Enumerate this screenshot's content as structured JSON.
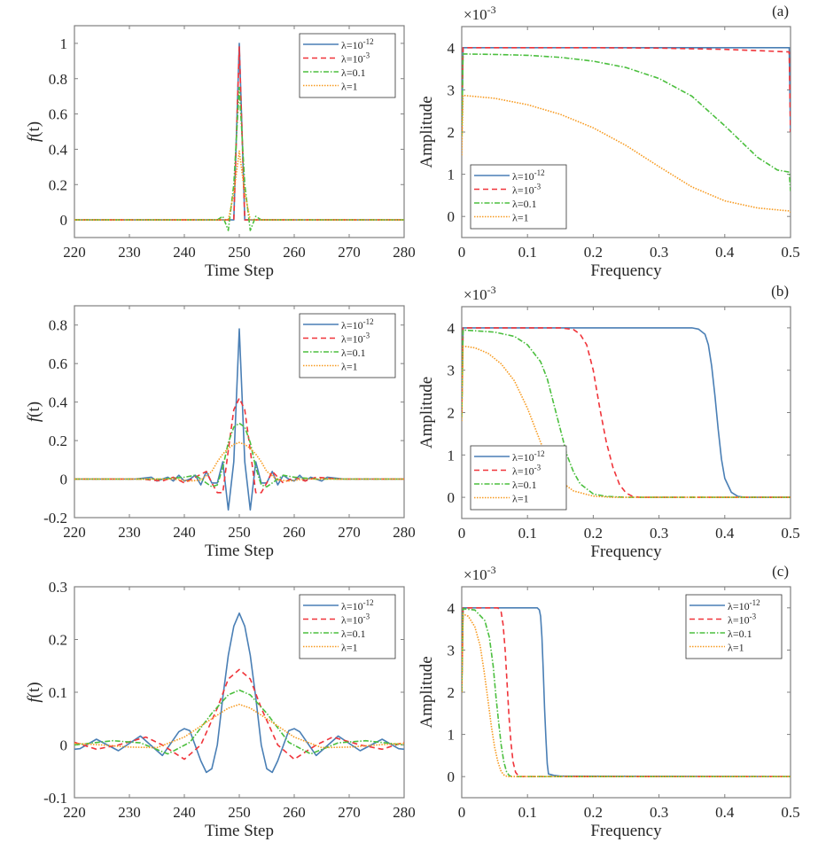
{
  "series_styles": [
    {
      "name": "λ=10^-12",
      "color": "#4a7fb5",
      "dash": ""
    },
    {
      "name": "λ=10^-3",
      "color": "#f0343a",
      "dash": "6,4"
    },
    {
      "name": "λ=0.1",
      "color": "#4bbf3e",
      "dash": "6,2,1.5,2"
    },
    {
      "name": "λ=1",
      "color": "#f79a1f",
      "dash": "1.5,1.5"
    }
  ],
  "legend_labels": [
    {
      "base": "λ=10",
      "sup": "-12"
    },
    {
      "base": "λ=10",
      "sup": "-3"
    },
    {
      "base": "λ=0.1",
      "sup": ""
    },
    {
      "base": "λ=1",
      "sup": ""
    }
  ],
  "chart_data": [
    {
      "id": "time-a",
      "type": "line",
      "xlabel": "Time Step",
      "ylabel": "f(t)",
      "xlim": [
        220,
        280
      ],
      "ylim": [
        -0.1,
        1.1
      ],
      "xticks": [
        "220",
        "230",
        "240",
        "250",
        "260",
        "270",
        "280"
      ],
      "yticks": [
        "0",
        "0.2",
        "0.4",
        "0.6",
        "0.8",
        "1"
      ],
      "legend": "top-right",
      "series": [
        {
          "name": "λ=10^-12",
          "x": [
            220,
            249,
            250,
            251,
            280
          ],
          "y": [
            0,
            0,
            1.0,
            0,
            0
          ]
        },
        {
          "name": "λ=10^-3",
          "x": [
            220,
            249,
            250,
            251,
            280
          ],
          "y": [
            0,
            0,
            0.98,
            0,
            0
          ]
        },
        {
          "name": "λ=0.1",
          "x": [
            220,
            246,
            247,
            248,
            249,
            250,
            251,
            252,
            253,
            254,
            280
          ],
          "y": [
            0,
            0,
            0.02,
            -0.06,
            0.2,
            0.75,
            0.2,
            -0.06,
            0.02,
            0,
            0
          ]
        },
        {
          "name": "λ=1",
          "x": [
            220,
            248,
            249,
            250,
            251,
            252,
            280
          ],
          "y": [
            0,
            0,
            0.15,
            0.39,
            0.15,
            0,
            0
          ]
        }
      ]
    },
    {
      "id": "freq-a",
      "type": "line",
      "panel_label": "(a)",
      "xlabel": "Frequency",
      "ylabel": "Amplitude",
      "y_exponent": "×10^-3",
      "xlim": [
        0,
        0.5
      ],
      "ylim": [
        -0.5,
        4.5
      ],
      "xticks": [
        "0",
        "0.1",
        "0.2",
        "0.3",
        "0.4",
        "0.5"
      ],
      "yticks": [
        "0",
        "1",
        "2",
        "3",
        "4"
      ],
      "legend": "bottom-left",
      "series": [
        {
          "name": "λ=10^-12",
          "x": [
            0,
            0.002,
            0.498,
            0.5
          ],
          "y": [
            2.0,
            4.0,
            4.0,
            2.0
          ]
        },
        {
          "name": "λ=10^-3",
          "x": [
            0,
            0.002,
            0.1,
            0.2,
            0.3,
            0.4,
            0.45,
            0.498,
            0.5
          ],
          "y": [
            2.0,
            4.0,
            4.0,
            4.0,
            3.99,
            3.96,
            3.93,
            3.9,
            2.0
          ]
        },
        {
          "name": "λ=0.1",
          "x": [
            0,
            0.002,
            0.05,
            0.1,
            0.15,
            0.2,
            0.25,
            0.3,
            0.35,
            0.4,
            0.45,
            0.48,
            0.498,
            0.5
          ],
          "y": [
            1.9,
            3.85,
            3.84,
            3.82,
            3.77,
            3.68,
            3.53,
            3.27,
            2.85,
            2.15,
            1.4,
            1.1,
            1.05,
            0.6
          ]
        },
        {
          "name": "λ=1",
          "x": [
            0,
            0.002,
            0.05,
            0.1,
            0.15,
            0.2,
            0.25,
            0.3,
            0.35,
            0.4,
            0.45,
            0.498,
            0.5
          ],
          "y": [
            1.45,
            2.87,
            2.8,
            2.65,
            2.42,
            2.1,
            1.68,
            1.18,
            0.7,
            0.37,
            0.2,
            0.13,
            0.1
          ]
        }
      ]
    },
    {
      "id": "time-b",
      "type": "line",
      "xlabel": "Time Step",
      "ylabel": "f(t)",
      "xlim": [
        220,
        280
      ],
      "ylim": [
        -0.2,
        0.9
      ],
      "xticks": [
        "220",
        "230",
        "240",
        "250",
        "260",
        "270",
        "280"
      ],
      "yticks": [
        "-0.2",
        "0",
        "0.2",
        "0.4",
        "0.6",
        "0.8"
      ],
      "legend": "top-right",
      "series": [
        {
          "name": "λ=10^-12",
          "x": [
            220,
            225,
            228,
            231,
            234,
            235,
            237,
            238,
            239,
            240,
            241,
            242,
            243,
            244,
            245,
            246,
            247,
            248,
            249,
            250,
            251,
            252,
            253,
            254,
            255,
            256,
            257,
            258,
            259,
            260,
            261,
            262,
            263,
            265,
            266,
            269,
            272,
            275,
            280
          ],
          "y": [
            0,
            0,
            0,
            0,
            0.01,
            -0.01,
            0.01,
            -0.01,
            0.02,
            -0.01,
            0,
            0.02,
            -0.03,
            0.04,
            -0.02,
            -0.02,
            0.09,
            -0.16,
            0.09,
            0.78,
            0.09,
            -0.16,
            0.09,
            -0.02,
            -0.02,
            0.04,
            -0.03,
            0.02,
            0,
            -0.01,
            0.02,
            -0.01,
            0.01,
            -0.01,
            0.01,
            0,
            0,
            0,
            0
          ]
        },
        {
          "name": "λ=10^-3",
          "x": [
            220,
            232,
            236,
            238,
            240,
            242,
            244,
            245,
            246,
            247,
            248,
            249,
            250,
            251,
            252,
            253,
            254,
            255,
            256,
            258,
            260,
            262,
            264,
            268,
            280
          ],
          "y": [
            0,
            0,
            -0.01,
            0.01,
            -0.02,
            0.01,
            0.04,
            -0.02,
            -0.07,
            -0.07,
            0.15,
            0.36,
            0.42,
            0.36,
            0.15,
            -0.07,
            -0.07,
            -0.02,
            0.04,
            -0.02,
            0.01,
            -0.01,
            0.01,
            0,
            0
          ]
        },
        {
          "name": "λ=0.1",
          "x": [
            220,
            236,
            240,
            242,
            244,
            245,
            246,
            247,
            248,
            249,
            250,
            251,
            252,
            253,
            254,
            255,
            256,
            258,
            260,
            264,
            280
          ],
          "y": [
            0,
            0,
            0.01,
            0.02,
            -0.02,
            -0.04,
            -0.03,
            0.06,
            0.19,
            0.27,
            0.29,
            0.27,
            0.19,
            0.06,
            -0.03,
            -0.04,
            -0.02,
            0.02,
            0.01,
            0,
            0
          ]
        },
        {
          "name": "λ=1",
          "x": [
            220,
            238,
            241,
            243,
            245,
            246,
            247,
            248,
            249,
            250,
            251,
            252,
            253,
            254,
            255,
            257,
            259,
            262,
            280
          ],
          "y": [
            0,
            0,
            -0.01,
            -0.005,
            0.04,
            0.09,
            0.13,
            0.16,
            0.18,
            0.19,
            0.18,
            0.16,
            0.13,
            0.09,
            0.04,
            -0.005,
            -0.01,
            0,
            0
          ]
        }
      ]
    },
    {
      "id": "freq-b",
      "type": "line",
      "panel_label": "(b)",
      "xlabel": "Frequency",
      "ylabel": "Amplitude",
      "y_exponent": "×10^-3",
      "xlim": [
        0,
        0.5
      ],
      "ylim": [
        -0.5,
        4.5
      ],
      "xticks": [
        "0",
        "0.1",
        "0.2",
        "0.3",
        "0.4",
        "0.5"
      ],
      "yticks": [
        "0",
        "1",
        "2",
        "3",
        "4"
      ],
      "legend": "bottom-left",
      "series": [
        {
          "name": "λ=10^-12",
          "x": [
            0,
            0.002,
            0.35,
            0.36,
            0.37,
            0.375,
            0.38,
            0.385,
            0.39,
            0.395,
            0.4,
            0.41,
            0.42,
            0.43,
            0.5
          ],
          "y": [
            2.0,
            4.0,
            4.0,
            3.97,
            3.85,
            3.6,
            3.1,
            2.4,
            1.6,
            0.9,
            0.45,
            0.12,
            0.02,
            0,
            0
          ]
        },
        {
          "name": "λ=10^-3",
          "x": [
            0,
            0.002,
            0.15,
            0.17,
            0.18,
            0.19,
            0.2,
            0.21,
            0.22,
            0.23,
            0.24,
            0.25,
            0.26,
            0.27,
            0.5
          ],
          "y": [
            2.0,
            4.0,
            4.0,
            3.96,
            3.85,
            3.6,
            3.0,
            2.1,
            1.3,
            0.7,
            0.3,
            0.1,
            0.02,
            0,
            0
          ]
        },
        {
          "name": "λ=0.1",
          "x": [
            0,
            0.002,
            0.05,
            0.08,
            0.1,
            0.12,
            0.13,
            0.14,
            0.15,
            0.16,
            0.17,
            0.18,
            0.2,
            0.22,
            0.25,
            0.5
          ],
          "y": [
            1.9,
            3.95,
            3.9,
            3.8,
            3.6,
            3.2,
            2.8,
            2.2,
            1.6,
            1.0,
            0.6,
            0.32,
            0.08,
            0.02,
            0,
            0
          ]
        },
        {
          "name": "λ=1",
          "x": [
            0,
            0.002,
            0.02,
            0.04,
            0.06,
            0.08,
            0.1,
            0.11,
            0.12,
            0.13,
            0.14,
            0.15,
            0.17,
            0.2,
            0.23,
            0.5
          ],
          "y": [
            1.8,
            3.57,
            3.53,
            3.4,
            3.15,
            2.75,
            2.1,
            1.7,
            1.3,
            0.9,
            0.6,
            0.38,
            0.15,
            0.03,
            0,
            0
          ]
        }
      ]
    },
    {
      "id": "time-c",
      "type": "line",
      "xlabel": "Time Step",
      "ylabel": "f(t)",
      "xlim": [
        220,
        280
      ],
      "ylim": [
        -0.1,
        0.3
      ],
      "xticks": [
        "220",
        "230",
        "240",
        "250",
        "260",
        "270",
        "280"
      ],
      "yticks": [
        "-0.1",
        "0",
        "0.1",
        "0.2",
        "0.3"
      ],
      "legend": "top-right",
      "series": [
        {
          "name": "λ=10^-12",
          "x": [
            220,
            221,
            224,
            228,
            232,
            236,
            239,
            240,
            241,
            243,
            244,
            245,
            246,
            247,
            248,
            249,
            250,
            251,
            252,
            253,
            254,
            255,
            256,
            257,
            259,
            260,
            261,
            264,
            268,
            272,
            276,
            279,
            280
          ],
          "y": [
            -0.008,
            -0.007,
            0.011,
            -0.011,
            0.017,
            -0.02,
            0.025,
            0.031,
            0.027,
            -0.03,
            -0.052,
            -0.045,
            0.0,
            0.09,
            0.17,
            0.225,
            0.25,
            0.225,
            0.17,
            0.09,
            0.0,
            -0.045,
            -0.052,
            -0.03,
            0.027,
            0.031,
            0.025,
            -0.02,
            0.017,
            -0.011,
            0.011,
            -0.007,
            -0.008
          ]
        },
        {
          "name": "λ=10^-3",
          "x": [
            220,
            224,
            228,
            233,
            236,
            240,
            243,
            246,
            248,
            250,
            252,
            254,
            257,
            260,
            264,
            267,
            272,
            276,
            280
          ],
          "y": [
            0.005,
            -0.008,
            0.0,
            0.015,
            0.0,
            -0.027,
            0.0,
            0.07,
            0.125,
            0.143,
            0.125,
            0.07,
            0.0,
            -0.027,
            0.0,
            0.015,
            0.0,
            -0.008,
            0.005
          ]
        },
        {
          "name": "λ=0.1",
          "x": [
            220,
            227,
            232,
            237,
            241,
            245,
            248,
            250,
            252,
            255,
            259,
            263,
            268,
            273,
            280
          ],
          "y": [
            0.0,
            0.008,
            0.004,
            -0.017,
            0.005,
            0.06,
            0.095,
            0.104,
            0.095,
            0.06,
            0.005,
            -0.017,
            0.004,
            0.008,
            0.0
          ]
        },
        {
          "name": "λ=1",
          "x": [
            220,
            225,
            230,
            235,
            240,
            245,
            248,
            250,
            252,
            255,
            260,
            265,
            270,
            275,
            280
          ],
          "y": [
            0.003,
            0.0,
            -0.004,
            -0.005,
            0.015,
            0.05,
            0.07,
            0.077,
            0.07,
            0.05,
            0.015,
            -0.005,
            -0.004,
            0.0,
            0.003
          ]
        }
      ]
    },
    {
      "id": "freq-c",
      "type": "line",
      "panel_label": "(c)",
      "xlabel": "Frequency",
      "ylabel": "Amplitude",
      "y_exponent": "×10^-3",
      "xlim": [
        0,
        0.5
      ],
      "ylim": [
        -0.5,
        4.5
      ],
      "xticks": [
        "0",
        "0.1",
        "0.2",
        "0.3",
        "0.4",
        "0.5"
      ],
      "yticks": [
        "0",
        "1",
        "2",
        "3",
        "4"
      ],
      "legend": "top-right",
      "series": [
        {
          "name": "λ=10^-12",
          "x": [
            0,
            0.002,
            0.115,
            0.118,
            0.12,
            0.122,
            0.124,
            0.126,
            0.128,
            0.13,
            0.132,
            0.135,
            0.14,
            0.15,
            0.5
          ],
          "y": [
            2.0,
            4.0,
            4.0,
            3.95,
            3.8,
            3.3,
            2.5,
            1.6,
            0.9,
            0.3,
            0.06,
            0.05,
            0.03,
            0.01,
            0
          ]
        },
        {
          "name": "λ=10^-3",
          "x": [
            0,
            0.002,
            0.055,
            0.06,
            0.063,
            0.066,
            0.069,
            0.072,
            0.075,
            0.078,
            0.082,
            0.086,
            0.09,
            0.5
          ],
          "y": [
            2.0,
            4.0,
            4.0,
            3.9,
            3.6,
            3.0,
            2.2,
            1.4,
            0.8,
            0.35,
            0.1,
            0.02,
            0,
            0
          ]
        },
        {
          "name": "λ=0.1",
          "x": [
            0,
            0.002,
            0.02,
            0.035,
            0.042,
            0.048,
            0.052,
            0.056,
            0.06,
            0.064,
            0.068,
            0.072,
            0.076,
            0.5
          ],
          "y": [
            2.0,
            3.98,
            3.95,
            3.7,
            3.3,
            2.6,
            1.9,
            1.3,
            0.75,
            0.35,
            0.12,
            0.03,
            0,
            0
          ]
        },
        {
          "name": "λ=1",
          "x": [
            0,
            0.002,
            0.01,
            0.02,
            0.028,
            0.034,
            0.04,
            0.045,
            0.05,
            0.055,
            0.06,
            0.065,
            0.07,
            0.5
          ],
          "y": [
            2.0,
            3.85,
            3.8,
            3.55,
            3.1,
            2.5,
            1.8,
            1.2,
            0.7,
            0.35,
            0.12,
            0.03,
            0,
            0
          ]
        }
      ]
    }
  ]
}
